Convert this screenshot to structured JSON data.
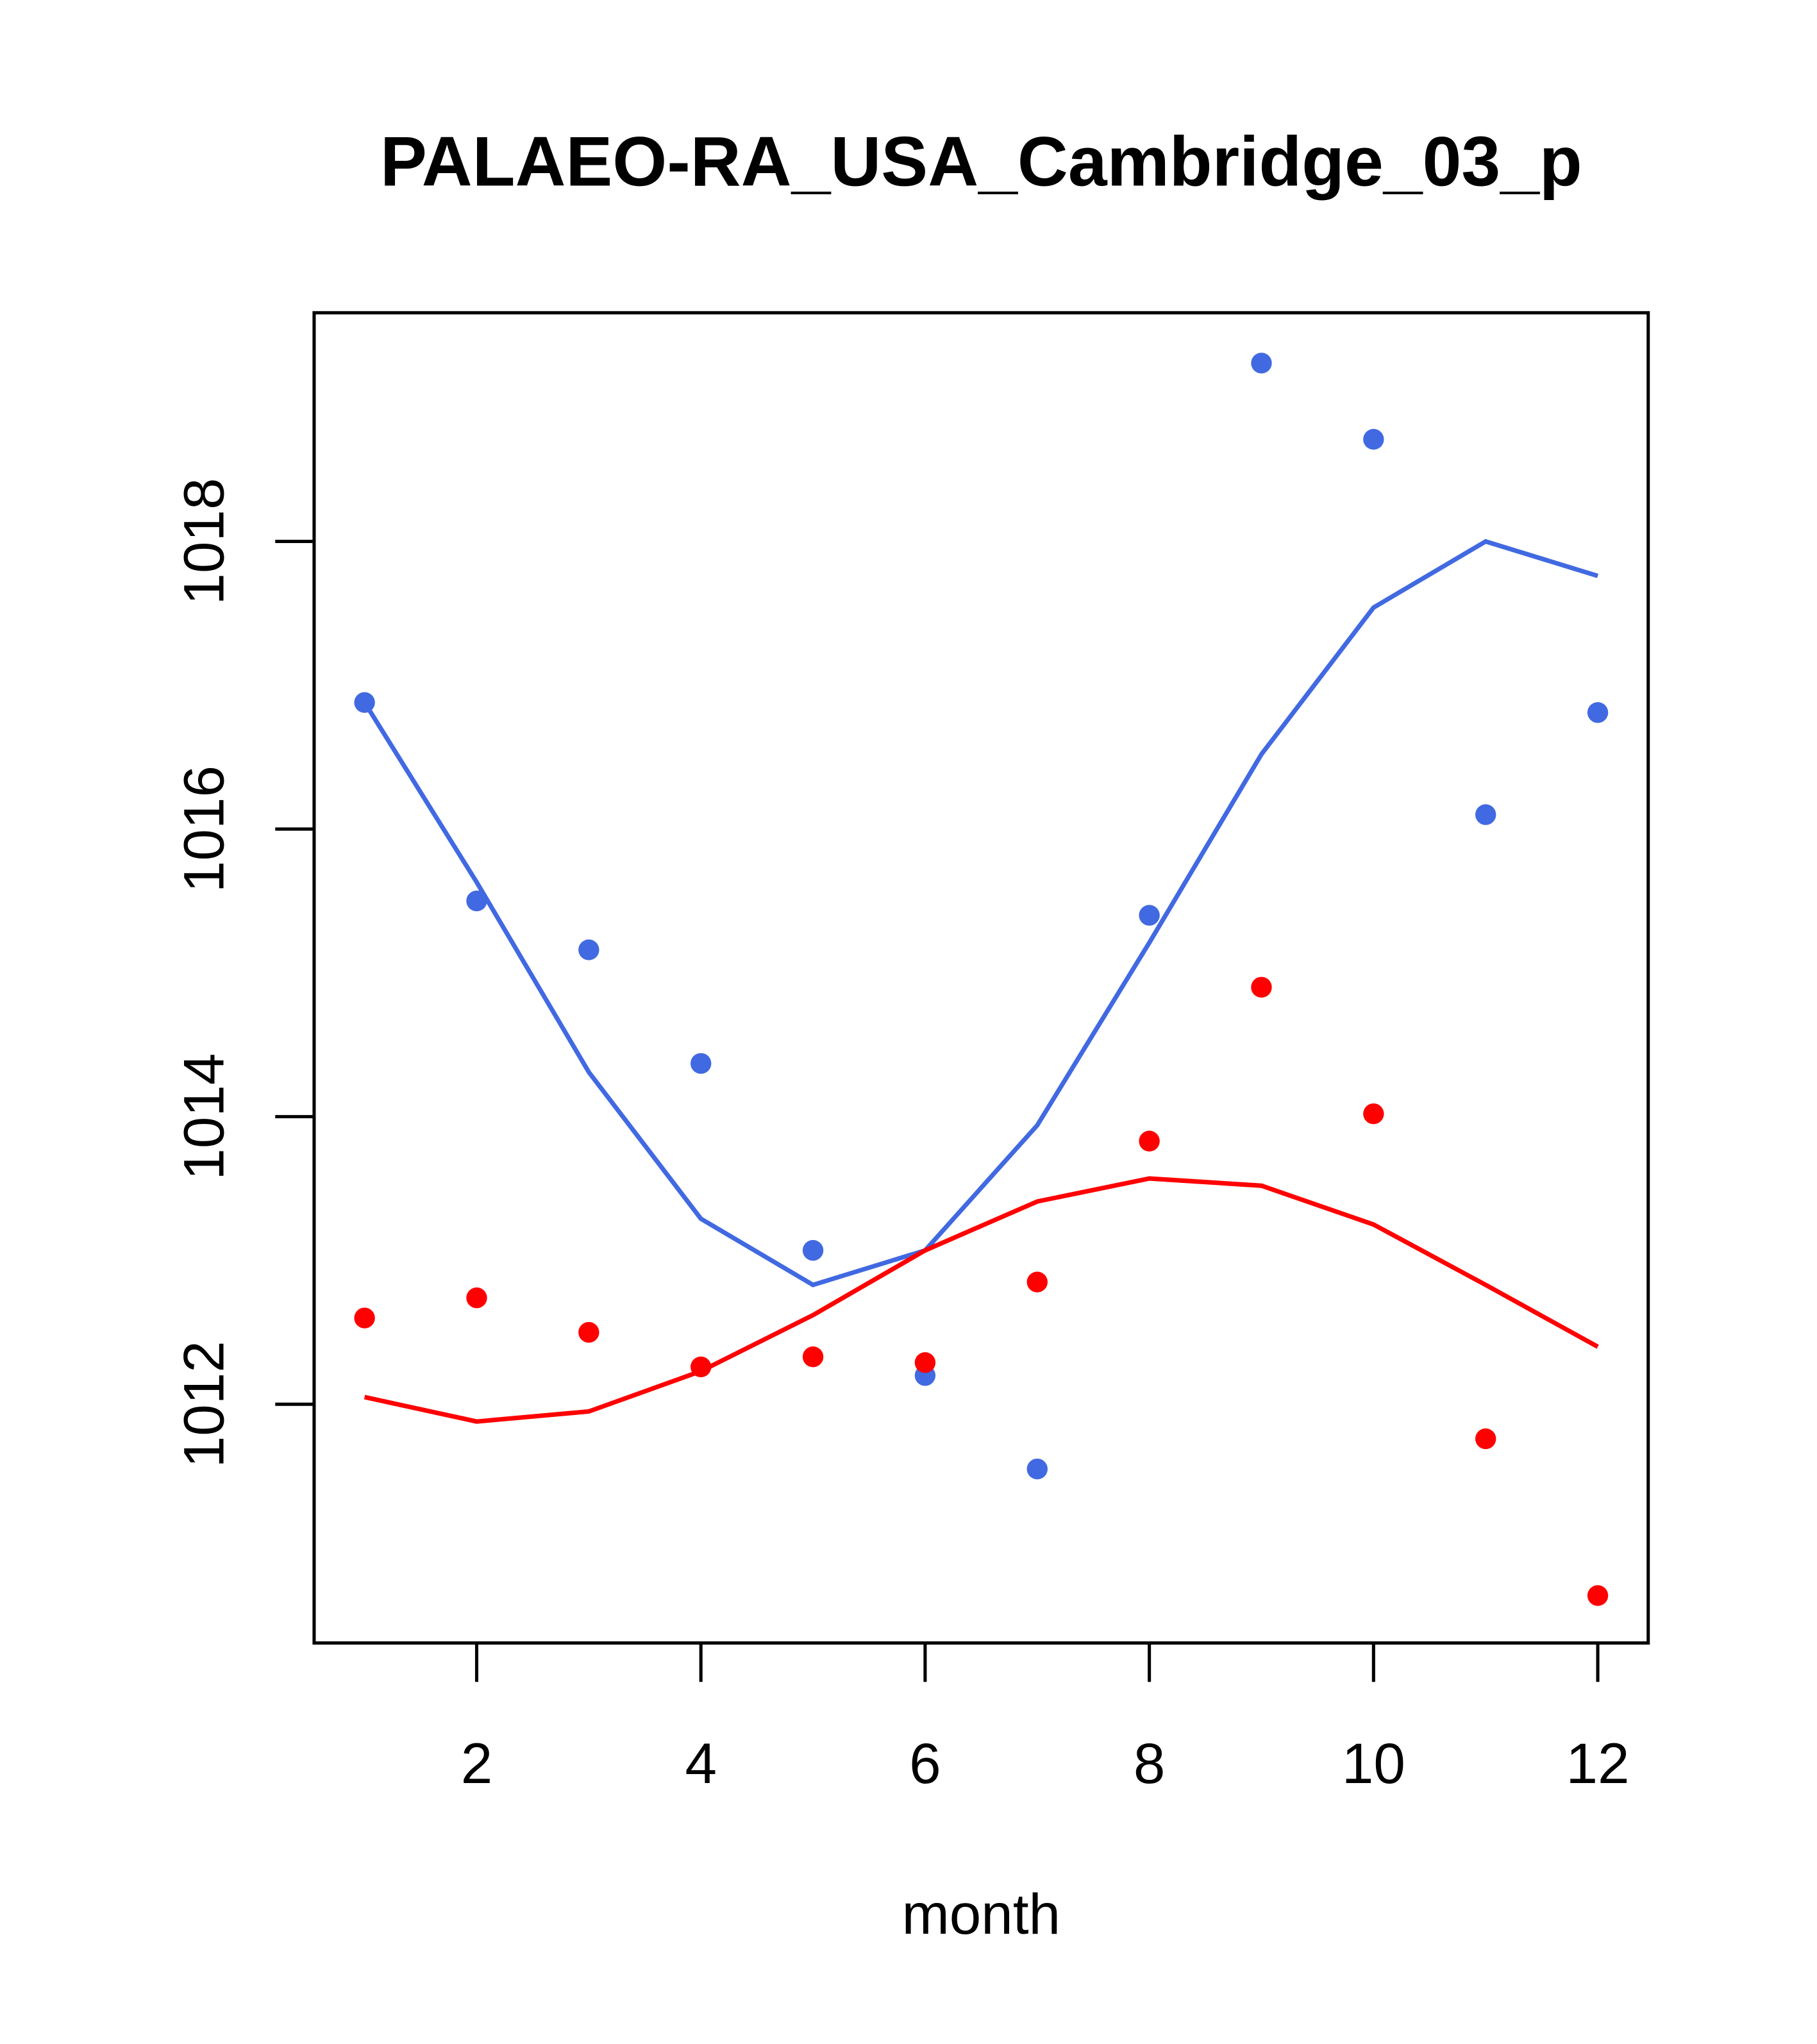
{
  "chart_data": {
    "type": "line",
    "title": "PALAEO-RA_USA_Cambridge_03_p",
    "xlabel": "month",
    "ylabel": "",
    "xlim": [
      0.55,
      12.45
    ],
    "ylim": [
      1010.34,
      1019.59
    ],
    "x": [
      1,
      2,
      3,
      4,
      5,
      6,
      7,
      8,
      9,
      10,
      11,
      12
    ],
    "xticks": [
      2,
      4,
      6,
      8,
      10,
      12
    ],
    "xtick_labels": [
      "2",
      "4",
      "6",
      "8",
      "10",
      "12"
    ],
    "yticks": [
      1012,
      1014,
      1016,
      1018
    ],
    "ytick_labels": [
      "1012",
      "1014",
      "1016",
      "1018"
    ],
    "grid": false,
    "series": [
      {
        "name": "blue points",
        "kind": "points",
        "color": "#4169E1",
        "values": [
          1016.88,
          1015.5,
          1015.16,
          1014.37,
          1013.07,
          1012.2,
          1011.55,
          1015.4,
          1019.24,
          1018.71,
          1016.1,
          1016.81
        ]
      },
      {
        "name": "blue line",
        "kind": "line",
        "color": "#4169E1",
        "values": [
          1016.88,
          1015.63,
          1014.31,
          1013.29,
          1012.83,
          1013.07,
          1013.94,
          1015.21,
          1016.52,
          1017.54,
          1018.0,
          1017.76
        ]
      },
      {
        "name": "red points",
        "kind": "points",
        "color": "#FF0000",
        "values": [
          1012.6,
          1012.74,
          1012.5,
          1012.26,
          1012.33,
          1012.29,
          1012.85,
          1013.83,
          1014.9,
          1014.02,
          1011.76,
          1010.67
        ]
      },
      {
        "name": "red line",
        "kind": "line",
        "color": "#FF0000",
        "values": [
          1012.05,
          1011.88,
          1011.95,
          1012.23,
          1012.62,
          1013.07,
          1013.41,
          1013.57,
          1013.52,
          1013.25,
          1012.83,
          1012.4
        ]
      }
    ]
  }
}
